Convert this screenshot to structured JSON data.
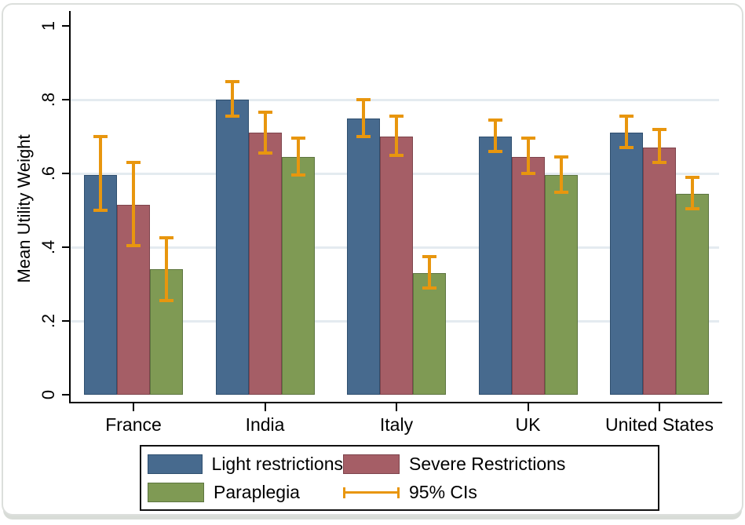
{
  "window": {
    "background": "#ffffff",
    "card_border_color": "#dcdfdc",
    "card_shadow_color": "#d8dcd7"
  },
  "chart_data": {
    "type": "bar",
    "title": "",
    "xlabel": "",
    "ylabel": "Mean Utility Weight",
    "categories": [
      "France",
      "India",
      "Italy",
      "UK",
      "United States"
    ],
    "series": [
      {
        "name": "Light restrictions",
        "color": "#476a8e",
        "edge_color": "#2f4f6f",
        "values": [
          0.595,
          0.8,
          0.75,
          0.7,
          0.71
        ],
        "ci_low": [
          0.5,
          0.755,
          0.7,
          0.66,
          0.67
        ],
        "ci_high": [
          0.7,
          0.85,
          0.8,
          0.745,
          0.755
        ]
      },
      {
        "name": "Severe Restrictions",
        "color": "#a55e66",
        "edge_color": "#7e444c",
        "values": [
          0.515,
          0.71,
          0.7,
          0.645,
          0.67
        ],
        "ci_low": [
          0.405,
          0.655,
          0.65,
          0.6,
          0.63
        ],
        "ci_high": [
          0.63,
          0.765,
          0.755,
          0.695,
          0.72
        ]
      },
      {
        "name": "Paraplegia",
        "color": "#7f9a54",
        "edge_color": "#5d7540",
        "values": [
          0.34,
          0.645,
          0.33,
          0.595,
          0.545
        ],
        "ci_low": [
          0.255,
          0.595,
          0.29,
          0.55,
          0.505
        ],
        "ci_high": [
          0.425,
          0.695,
          0.375,
          0.645,
          0.59
        ]
      }
    ],
    "error_bars": {
      "label": "95% CIs",
      "color": "#e8960e"
    },
    "y_axis": {
      "tick_values": [
        0,
        0.2,
        0.4,
        0.6,
        0.8,
        1
      ],
      "tick_labels": [
        "0",
        ".2",
        ".4",
        ".6",
        ".8",
        "1"
      ]
    },
    "ylim": [
      0,
      1.05
    ],
    "grid": {
      "show": true,
      "color": "#e4ebf0",
      "at": [
        0.2,
        0.4,
        0.6,
        0.8
      ]
    },
    "legend": {
      "position": "bottom",
      "border_color": "#111111"
    }
  }
}
